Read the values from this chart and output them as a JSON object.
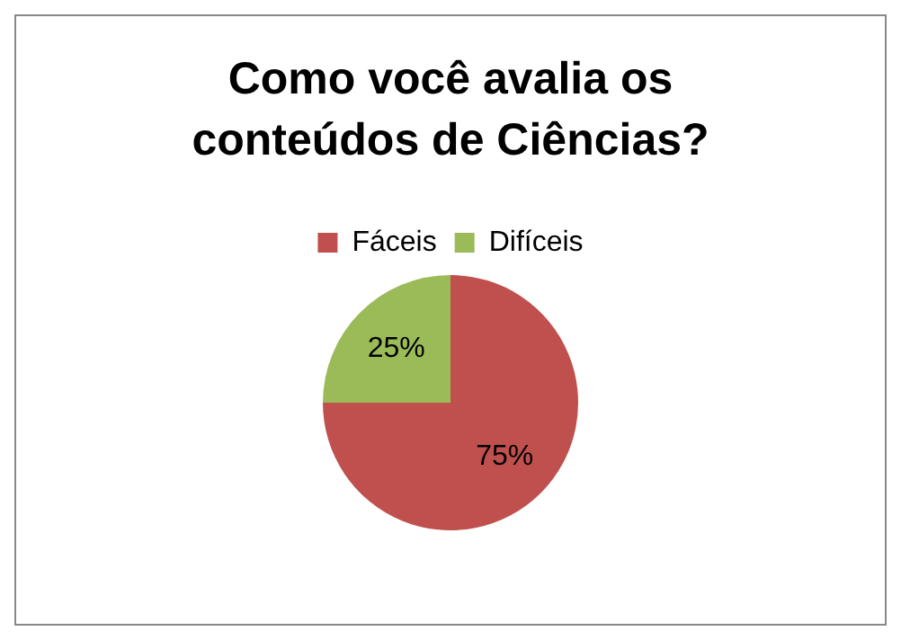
{
  "chart_data": {
    "type": "pie",
    "title": "Como você avalia os conteúdos de Ciências?",
    "categories": [
      "Fáceis",
      "Difíceis"
    ],
    "values": [
      75,
      25
    ],
    "colors": [
      "#c0504d",
      "#9bbb59"
    ],
    "value_labels": [
      "75%",
      "25%"
    ],
    "legend": "top"
  }
}
